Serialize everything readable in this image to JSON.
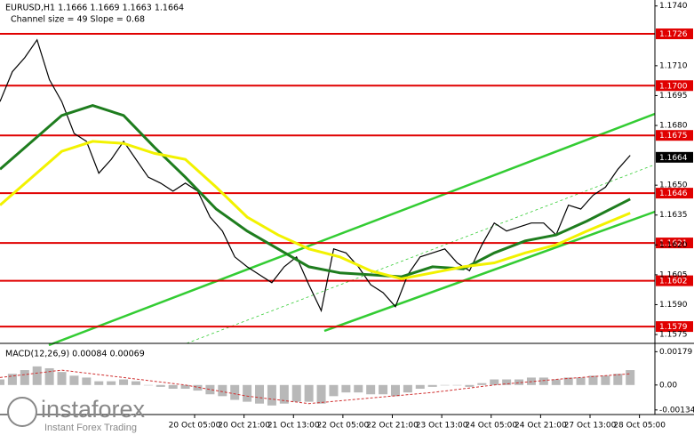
{
  "chart_data": [
    {
      "type": "line",
      "title": "EURUSD,H1  1.1666 1.1669 1.1663 1.1664",
      "subtitle": "Channel size = 49 Slope = 0.68",
      "xlim": [
        0,
        212
      ],
      "ylim": [
        1.1571,
        1.1743
      ],
      "xticks": [
        {
          "value": 63,
          "label": "20 Oct 05:00"
        },
        {
          "value": 79,
          "label": "20 Oct 21:00"
        },
        {
          "value": 95,
          "label": "21 Oct 13:00"
        },
        {
          "value": 111,
          "label": "22 Oct 05:00"
        },
        {
          "value": 127,
          "label": "22 Oct 21:00"
        },
        {
          "value": 143,
          "label": "23 Oct 13:00"
        },
        {
          "value": 159,
          "label": "24 Oct 05:00"
        },
        {
          "value": 175,
          "label": "24 Oct 21:00"
        },
        {
          "value": 191,
          "label": "27 Oct 13:00"
        },
        {
          "value": 207,
          "label": "28 Oct 05:00"
        }
      ],
      "yticks": [
        {
          "value": 1.174,
          "label": "1.1740"
        },
        {
          "value": 1.171,
          "label": "1.1710"
        },
        1.1695,
        {
          "value": 1.168,
          "label": "1.1680"
        },
        {
          "value": 1.165,
          "label": "1.1650"
        },
        1.1635,
        {
          "value": 1.162,
          "label": "1.1620"
        },
        1.1605,
        {
          "value": 1.159,
          "label": "1.1590"
        },
        1.1575
      ],
      "levels": [
        1.1726,
        {
          "value": 1.17,
          "label": "1.1700"
        },
        1.1675,
        1.1646,
        1.1621,
        1.1602,
        1.1579
      ],
      "level_color": "#e00000",
      "last_price": 1.1664,
      "series": [
        {
          "color": "#000000",
          "x": [
            0,
            4,
            8,
            12,
            16,
            20,
            24,
            28,
            32,
            36,
            40,
            44,
            48,
            52,
            56,
            60,
            64,
            68,
            72,
            76,
            80,
            84,
            88,
            92,
            96,
            100,
            104,
            108,
            112,
            116,
            120,
            124,
            128,
            132,
            136,
            140,
            144,
            148,
            152,
            156,
            160,
            164,
            168,
            172,
            176,
            180,
            184,
            188,
            192,
            196,
            200,
            204
          ],
          "values": [
            1.1692,
            1.1707,
            1.1714,
            1.1723,
            1.1703,
            1.1692,
            1.1676,
            1.1672,
            1.1656,
            1.1663,
            1.1672,
            1.1663,
            1.1654,
            1.1651,
            1.1647,
            1.1651,
            1.1647,
            1.1634,
            1.1627,
            1.1614,
            1.1609,
            1.1605,
            1.1601,
            1.1609,
            1.1614,
            1.16,
            1.1587,
            1.1618,
            1.1616,
            1.1609,
            1.16,
            1.1596,
            1.1589,
            1.1605,
            1.1614,
            1.1616,
            1.1618,
            1.1611,
            1.1607,
            1.162,
            1.1631,
            1.1627,
            1.1629,
            1.1631,
            1.1631,
            1.1625,
            1.164,
            1.1638,
            1.1645,
            1.1649,
            1.1658,
            1.1665
          ]
        },
        {
          "color": "#1e7d1e",
          "x": [
            0,
            20,
            30,
            40,
            50,
            60,
            70,
            80,
            90,
            100,
            110,
            120,
            130,
            140,
            150,
            160,
            170,
            180,
            190,
            204
          ],
          "values": [
            1.1658,
            1.1685,
            1.169,
            1.1685,
            1.1669,
            1.1654,
            1.1638,
            1.1627,
            1.1618,
            1.1609,
            1.1606,
            1.1605,
            1.1604,
            1.1609,
            1.1608,
            1.1616,
            1.1622,
            1.1625,
            1.1632,
            1.1643
          ]
        },
        {
          "color": "#f2f200",
          "x": [
            0,
            20,
            30,
            40,
            50,
            60,
            70,
            80,
            90,
            100,
            110,
            120,
            130,
            140,
            150,
            160,
            170,
            180,
            190,
            204
          ],
          "values": [
            1.164,
            1.1667,
            1.1672,
            1.1671,
            1.1666,
            1.1663,
            1.1649,
            1.1634,
            1.1625,
            1.1618,
            1.1614,
            1.1607,
            1.1603,
            1.1606,
            1.1609,
            1.1611,
            1.1616,
            1.162,
            1.1627,
            1.1636
          ]
        }
      ]
    },
    {
      "type": "bar",
      "title": "MACD(12,26,9) 0.00084 0.00069",
      "color": "#b8b8b8",
      "ylim": [
        -0.00154,
        0.00219
      ],
      "yticks": [
        0.00179,
        {
          "value": 0,
          "label": "0.00"
        },
        -0.00134
      ],
      "x": [
        0,
        4,
        8,
        12,
        16,
        20,
        24,
        28,
        32,
        36,
        40,
        44,
        48,
        52,
        56,
        60,
        64,
        68,
        72,
        76,
        80,
        84,
        88,
        92,
        96,
        100,
        104,
        108,
        112,
        116,
        120,
        124,
        128,
        132,
        136,
        140,
        144,
        148,
        152,
        156,
        160,
        164,
        168,
        172,
        176,
        180,
        184,
        188,
        192,
        196,
        200,
        204
      ],
      "values": [
        0.0003,
        0.0006,
        0.0008,
        0.001,
        0.0009,
        0.0007,
        0.0005,
        0.0004,
        0.0002,
        0.0002,
        0.0003,
        0.0002,
        0,
        -0.0001,
        -0.0002,
        -0.0002,
        -0.0003,
        -0.0005,
        -0.0006,
        -0.0008,
        -0.0009,
        -0.001,
        -0.0011,
        -0.001,
        -0.0009,
        -0.0009,
        -0.001,
        -0.0006,
        -0.0004,
        -0.0004,
        -0.0005,
        -0.0005,
        -0.0006,
        -0.0004,
        -0.0002,
        -0.0001,
        0,
        0,
        -0.0001,
        0.0001,
        0.0003,
        0.0003,
        0.0003,
        0.0004,
        0.0004,
        0.0003,
        0.0004,
        0.0004,
        0.0005,
        0.0005,
        0.0006,
        0.0008
      ],
      "signal": {
        "color": "#d03030",
        "x": [
          0,
          20,
          40,
          60,
          80,
          100,
          120,
          140,
          160,
          180,
          204
        ],
        "values": [
          0.0004,
          0.0008,
          0.0004,
          0,
          -0.0006,
          -0.001,
          -0.0007,
          -0.0004,
          0,
          0.0003,
          0.0006
        ]
      }
    }
  ],
  "watermark": {
    "brand": "instaforex",
    "tagline": "Instant Forex Trading"
  }
}
